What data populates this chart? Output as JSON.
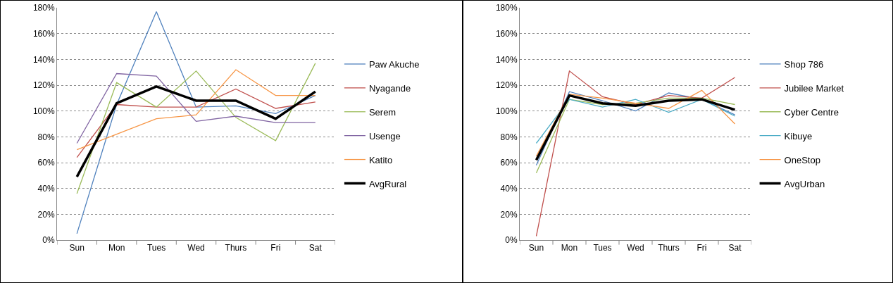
{
  "chart_data": [
    {
      "type": "line",
      "categories": [
        "Sun",
        "Mon",
        "Tues",
        "Wed",
        "Thurs",
        "Fri",
        "Sat"
      ],
      "ylim": [
        0,
        180
      ],
      "yticks": [
        {
          "value": 0,
          "label": "0%"
        },
        {
          "value": 20,
          "label": "20%"
        },
        {
          "value": 40,
          "label": "40%"
        },
        {
          "value": 60,
          "label": "60%"
        },
        {
          "value": 80,
          "label": "80%"
        },
        {
          "value": 100,
          "label": "100%"
        },
        {
          "value": 120,
          "label": "120%"
        },
        {
          "value": 140,
          "label": "140%"
        },
        {
          "value": 160,
          "label": "160%"
        },
        {
          "value": 180,
          "label": "180%"
        }
      ],
      "grid": "y",
      "legend": "right",
      "marker": "none",
      "line_style": "solid",
      "series": [
        {
          "name": "Paw Akuche",
          "color": "#4f81bd",
          "values": [
            5,
            105,
            177,
            103,
            104,
            98,
            112
          ]
        },
        {
          "name": "Nyagande",
          "color": "#c0504d",
          "values": [
            64,
            105,
            103,
            103,
            117,
            102,
            107
          ]
        },
        {
          "name": "Serem",
          "color": "#9bbb59",
          "values": [
            36,
            122,
            103,
            131,
            95,
            77,
            137
          ]
        },
        {
          "name": "Usenge",
          "color": "#8064a2",
          "values": [
            75,
            129,
            127,
            92,
            96,
            91,
            91
          ]
        },
        {
          "name": "Katito",
          "color": "#f79646",
          "values": [
            70,
            82,
            94,
            97,
            132,
            112,
            112
          ]
        },
        {
          "name": "AvgRural",
          "color": "#000000",
          "values": [
            49,
            106,
            119,
            108,
            108,
            94,
            115
          ]
        }
      ]
    },
    {
      "type": "line",
      "categories": [
        "Sun",
        "Mon",
        "Tues",
        "Wed",
        "Thurs",
        "Fri",
        "Sat"
      ],
      "ylim": [
        0,
        180
      ],
      "yticks": [
        {
          "value": 0,
          "label": "0%"
        },
        {
          "value": 20,
          "label": "20%"
        },
        {
          "value": 40,
          "label": "40%"
        },
        {
          "value": 60,
          "label": "60%"
        },
        {
          "value": 80,
          "label": "80%"
        },
        {
          "value": 100,
          "label": "100%"
        },
        {
          "value": 120,
          "label": "120%"
        },
        {
          "value": 140,
          "label": "140%"
        },
        {
          "value": 160,
          "label": "160%"
        },
        {
          "value": 180,
          "label": "180%"
        }
      ],
      "grid": "y",
      "legend": "right",
      "marker": "none",
      "line_style": "solid",
      "series": [
        {
          "name": "Shop 786",
          "color": "#4f81bd",
          "values": [
            58,
            115,
            108,
            100,
            114,
            109,
            97
          ]
        },
        {
          "name": "Jubilee Market",
          "color": "#c0504d",
          "values": [
            3,
            131,
            111,
            105,
            112,
            110,
            126
          ]
        },
        {
          "name": "Cyber Centre",
          "color": "#9bbb59",
          "values": [
            52,
            109,
            105,
            106,
            110,
            110,
            105
          ]
        },
        {
          "name": "Kibuye",
          "color": "#4bacc6",
          "values": [
            75,
            109,
            103,
            109,
            99,
            109,
            96
          ]
        },
        {
          "name": "OneStop",
          "color": "#f79646",
          "values": [
            65,
            113,
            110,
            106,
            102,
            116,
            90
          ]
        },
        {
          "name": "AvgUrban",
          "color": "#000000",
          "values": [
            62,
            112,
            106,
            104,
            108,
            109,
            101
          ]
        }
      ]
    }
  ]
}
